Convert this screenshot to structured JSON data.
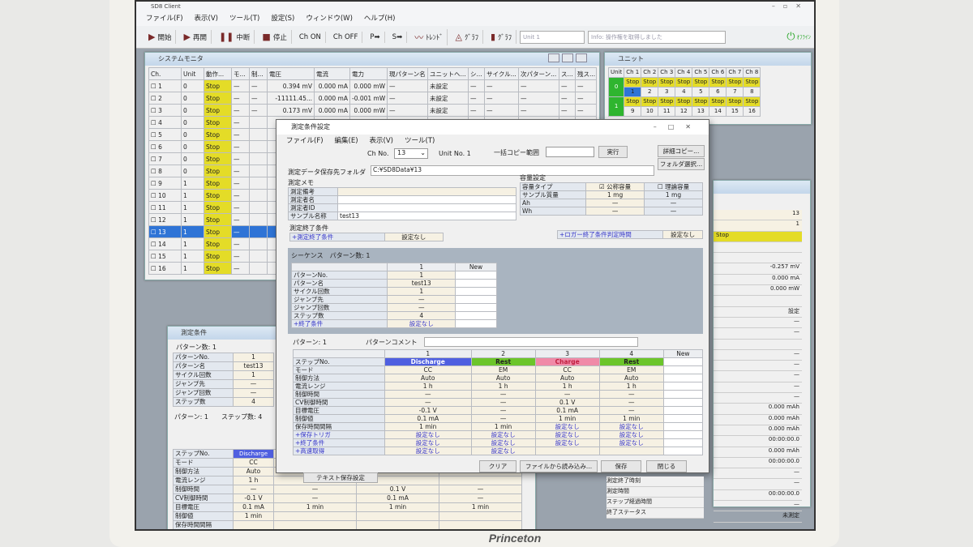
{
  "app": {
    "title": "SD8 Client",
    "menu": [
      "ファイル(F)",
      "表示(V)",
      "ツール(T)",
      "設定(S)",
      "ウィンドウ(W)",
      "ヘルプ(H)"
    ],
    "toolbar": [
      {
        "label": "開始",
        "icon": "play-icon"
      },
      {
        "label": "再開",
        "icon": "resume-icon"
      },
      {
        "label": "中断",
        "icon": "pause-icon"
      },
      {
        "label": "停止",
        "icon": "stop-icon"
      },
      {
        "label": "Ch ON",
        "icon": ""
      },
      {
        "label": "Ch OFF",
        "icon": ""
      },
      {
        "label": "P➡",
        "icon": ""
      },
      {
        "label": "S➡",
        "icon": ""
      },
      {
        "label": "ﾄﾚﾝﾄﾞ",
        "icon": "trend-icon"
      },
      {
        "label": "ｸﾞﾗﾌ",
        "icon": "graph-icon"
      },
      {
        "label": "ｸﾞﾗﾌ",
        "icon": "bar-graph-icon"
      }
    ],
    "unit_field": "Unit 1",
    "info_field": "Info: 操作権を取得しました",
    "power_label": "ｵﾌﾗｲﾝ"
  },
  "system_monitor": {
    "title": "システムモニタ",
    "columns": [
      "Ch.",
      "Unit",
      "動作...",
      "モ...",
      "制...",
      "電圧",
      "電流",
      "電力",
      "現パターン名",
      "ユニットヘ...",
      "シ...",
      "サイクル...",
      "次パターン...",
      "ス...",
      "残ス..."
    ],
    "rows": [
      [
        "1",
        "0",
        "Stop",
        "—",
        "—",
        "0.394 mV",
        "0.000 mA",
        "0.000 mW",
        "—",
        "未設定",
        "—",
        "—",
        "—",
        "—",
        "—"
      ],
      [
        "2",
        "0",
        "Stop",
        "—",
        "—",
        "-11111.45...",
        "0.000 mA",
        "-0.001 mW",
        "—",
        "未設定",
        "—",
        "—",
        "—",
        "—",
        "—"
      ],
      [
        "3",
        "0",
        "Stop",
        "—",
        "—",
        "0.173 mV",
        "0.000 mA",
        "0.000 mW",
        "—",
        "未設定",
        "—",
        "—",
        "—",
        "—",
        "—"
      ],
      [
        "4",
        "0",
        "Stop",
        "—",
        "",
        "",
        "",
        "",
        "",
        "",
        "",
        "",
        "",
        "",
        ""
      ],
      [
        "5",
        "0",
        "Stop",
        "—",
        "",
        "",
        "",
        "",
        "",
        "",
        "",
        "",
        "",
        "",
        ""
      ],
      [
        "6",
        "0",
        "Stop",
        "—",
        "",
        "",
        "",
        "",
        "",
        "",
        "",
        "",
        "",
        "",
        ""
      ],
      [
        "7",
        "0",
        "Stop",
        "—",
        "",
        "",
        "",
        "",
        "",
        "",
        "",
        "",
        "",
        "",
        ""
      ],
      [
        "8",
        "0",
        "Stop",
        "—",
        "",
        "",
        "",
        "",
        "",
        "",
        "",
        "",
        "",
        "",
        ""
      ],
      [
        "9",
        "1",
        "Stop",
        "—",
        "",
        "",
        "",
        "",
        "",
        "",
        "",
        "",
        "",
        "",
        ""
      ],
      [
        "10",
        "1",
        "Stop",
        "—",
        "",
        "",
        "",
        "",
        "",
        "",
        "",
        "",
        "",
        "",
        ""
      ],
      [
        "11",
        "1",
        "Stop",
        "—",
        "",
        "",
        "",
        "",
        "",
        "",
        "",
        "",
        "",
        "",
        ""
      ],
      [
        "12",
        "1",
        "Stop",
        "—",
        "",
        "",
        "",
        "",
        "",
        "",
        "",
        "",
        "",
        "",
        ""
      ],
      [
        "13",
        "1",
        "Stop",
        "—",
        "",
        "",
        "",
        "",
        "",
        "",
        "",
        "",
        "",
        "",
        ""
      ],
      [
        "14",
        "1",
        "Stop",
        "—",
        "",
        "",
        "",
        "",
        "",
        "",
        "",
        "",
        "",
        "",
        ""
      ],
      [
        "15",
        "1",
        "Stop",
        "—",
        "",
        "",
        "",
        "",
        "",
        "",
        "",
        "",
        "",
        "",
        ""
      ],
      [
        "16",
        "1",
        "Stop",
        "—",
        "",
        "",
        "",
        "",
        "",
        "",
        "",
        "",
        "",
        "",
        ""
      ]
    ],
    "selected_ch": "13"
  },
  "unit_panel": {
    "title": "ユニット",
    "headers": [
      "Unit",
      "Ch 1",
      "Ch 2",
      "Ch 3",
      "Ch 4",
      "Ch 5",
      "Ch 6",
      "Ch 7",
      "Ch 8"
    ],
    "units": [
      {
        "unit": "0",
        "status": "Stop",
        "channels": [
          "1",
          "2",
          "3",
          "4",
          "5",
          "6",
          "7",
          "8"
        ]
      },
      {
        "unit": "1",
        "status": "Stop",
        "channels": [
          "9",
          "10",
          "11",
          "12",
          "13",
          "14",
          "15",
          "16"
        ]
      }
    ]
  },
  "detail_panel": {
    "values": [
      "13",
      "1",
      "Stop",
      "",
      "",
      "-0.257 mV",
      "0.000 mA",
      "0.000 mW",
      "",
      "設定",
      "—",
      "—",
      "",
      "—",
      "—",
      "—",
      "—",
      "—",
      "0.000 mAh",
      "0.000 mAh",
      "0.000 mAh",
      "00:00:00.0",
      "0.000 mAh",
      "00:00:00.0",
      "—",
      "—",
      "00:00:00.0",
      "—",
      "未測定"
    ],
    "labels": [
      "測定終了時刻",
      "測定時間",
      "ステップ経過時間",
      "終了ステータス"
    ]
  },
  "conditions_window": {
    "title": "測定条件",
    "pattern_count": "パターン数: 1",
    "seq_rows": [
      [
        "パターンNo.",
        "1"
      ],
      [
        "パターン名",
        "test13"
      ],
      [
        "サイクル回数",
        "1"
      ],
      [
        "ジャンプ先",
        "—"
      ],
      [
        "ジャンプ回数",
        "—"
      ],
      [
        "ステップ数",
        "4"
      ]
    ],
    "pattern_label": "パターン: 1",
    "step_count": "ステップ数: 4",
    "step_rows": [
      [
        "ステップNo.",
        "Discharge",
        "",
        "",
        ""
      ],
      [
        "モード",
        "CC",
        "",
        "",
        ""
      ],
      [
        "制御方法",
        "Auto",
        "",
        "",
        ""
      ],
      [
        "電流レンジ",
        "1 h",
        "",
        "",
        ""
      ],
      [
        "制御時間",
        "—",
        "—",
        "0.1 V",
        "—"
      ],
      [
        "CV制御時間",
        "-0.1 V",
        "—",
        "0.1 mA",
        "—"
      ],
      [
        "目標電圧",
        "0.1 mA",
        "1 min",
        "1 min",
        "1 min"
      ],
      [
        "制御値",
        "1 min",
        "",
        "",
        ""
      ],
      [
        "保存時間間隔",
        "",
        "",
        "",
        ""
      ]
    ],
    "text_save_button": "テキスト保存設定"
  },
  "dialog": {
    "title": "測定条件設定",
    "menu": [
      "ファイル(F)",
      "編集(E)",
      "表示(V)",
      "ツール(T)"
    ],
    "ch_no_label": "Ch No.",
    "ch_no": "13",
    "unit_no": "Unit No. 1",
    "copy_range_label": "一括コピー範囲",
    "copy_range": "",
    "execute": "実行",
    "detail_copy": "詳細コピー...",
    "folder_select": "フォルダ選択...",
    "folder_label": "測定データ保存先フォルダ",
    "folder": "C:¥SD8Data¥13",
    "memo_label": "測定メモ",
    "memo_rows": [
      [
        "測定備考",
        ""
      ],
      [
        "測定者名",
        ""
      ],
      [
        "測定者ID",
        ""
      ],
      [
        "サンプル名称",
        "test13"
      ]
    ],
    "capacity_label": "容量設定",
    "capacity_rows": [
      [
        "容量タイプ",
        "公称容量",
        "理論容量"
      ],
      [
        "サンプル質量",
        "1 mg",
        "1 mg"
      ],
      [
        "Ah",
        "—",
        "—"
      ],
      [
        "Wh",
        "—",
        "—"
      ]
    ],
    "nominal_checked": true,
    "theoretical_checked": false,
    "end_cond_label": "測定終了条件",
    "end_cond": "+測定終了条件",
    "end_cond_value": "設定なし",
    "logger_label": "+ロガー終了条件判定時間",
    "logger_value": "設定なし",
    "sequence_label": "シーケンス　パターン数: 1",
    "seq_header": [
      "",
      "1",
      "New"
    ],
    "seq_rows": [
      [
        "パターンNo.",
        "1",
        ""
      ],
      [
        "パターン名",
        "test13",
        ""
      ],
      [
        "サイクル回数",
        "1",
        ""
      ],
      [
        "ジャンプ先",
        "—",
        ""
      ],
      [
        "ジャンプ回数",
        "—",
        ""
      ],
      [
        "ステップ数",
        "4",
        ""
      ],
      [
        "+終了条件",
        "設定なし",
        ""
      ]
    ],
    "pattern_label": "パターン: 1",
    "pattern_comment_label": "パターンコメント",
    "pattern_comment": "",
    "step_header": [
      "",
      "1",
      "2",
      "3",
      "4",
      "New"
    ],
    "step_types": [
      {
        "label": "Discharge",
        "color": "#4f5fe0"
      },
      {
        "label": "Rest",
        "color": "#6cc52a"
      },
      {
        "label": "Charge",
        "color": "#f08aa8"
      },
      {
        "label": "Rest",
        "color": "#6cc52a"
      }
    ],
    "step_rows": [
      [
        "モード",
        "CC",
        "EM",
        "CC",
        "EM"
      ],
      [
        "制御方法",
        "Auto",
        "Auto",
        "Auto",
        "Auto"
      ],
      [
        "電流レンジ",
        "1 h",
        "1 h",
        "1 h",
        "1 h"
      ],
      [
        "制御時間",
        "—",
        "—",
        "—",
        "—"
      ],
      [
        "CV制御時間",
        "—",
        "—",
        "0.1 V",
        "—"
      ],
      [
        "目標電圧",
        "-0.1 V",
        "—",
        "0.1 mA",
        "—"
      ],
      [
        "制御値",
        "0.1 mA",
        "—",
        "1 min",
        "1 min"
      ],
      [
        "保存時間間隔",
        "1 min",
        "1 min",
        "設定なし",
        "設定なし"
      ],
      [
        "+保存トリガ",
        "設定なし",
        "設定なし",
        "設定なし",
        "設定なし"
      ],
      [
        "+終了条件",
        "設定なし",
        "設定なし",
        "設定なし",
        "設定なし"
      ],
      [
        "+高速取得",
        "設定なし",
        "設定なし",
        "",
        ""
      ]
    ],
    "clear": "クリア",
    "load": "ファイルから読み込み...",
    "save": "保存",
    "close": "閉じる"
  }
}
